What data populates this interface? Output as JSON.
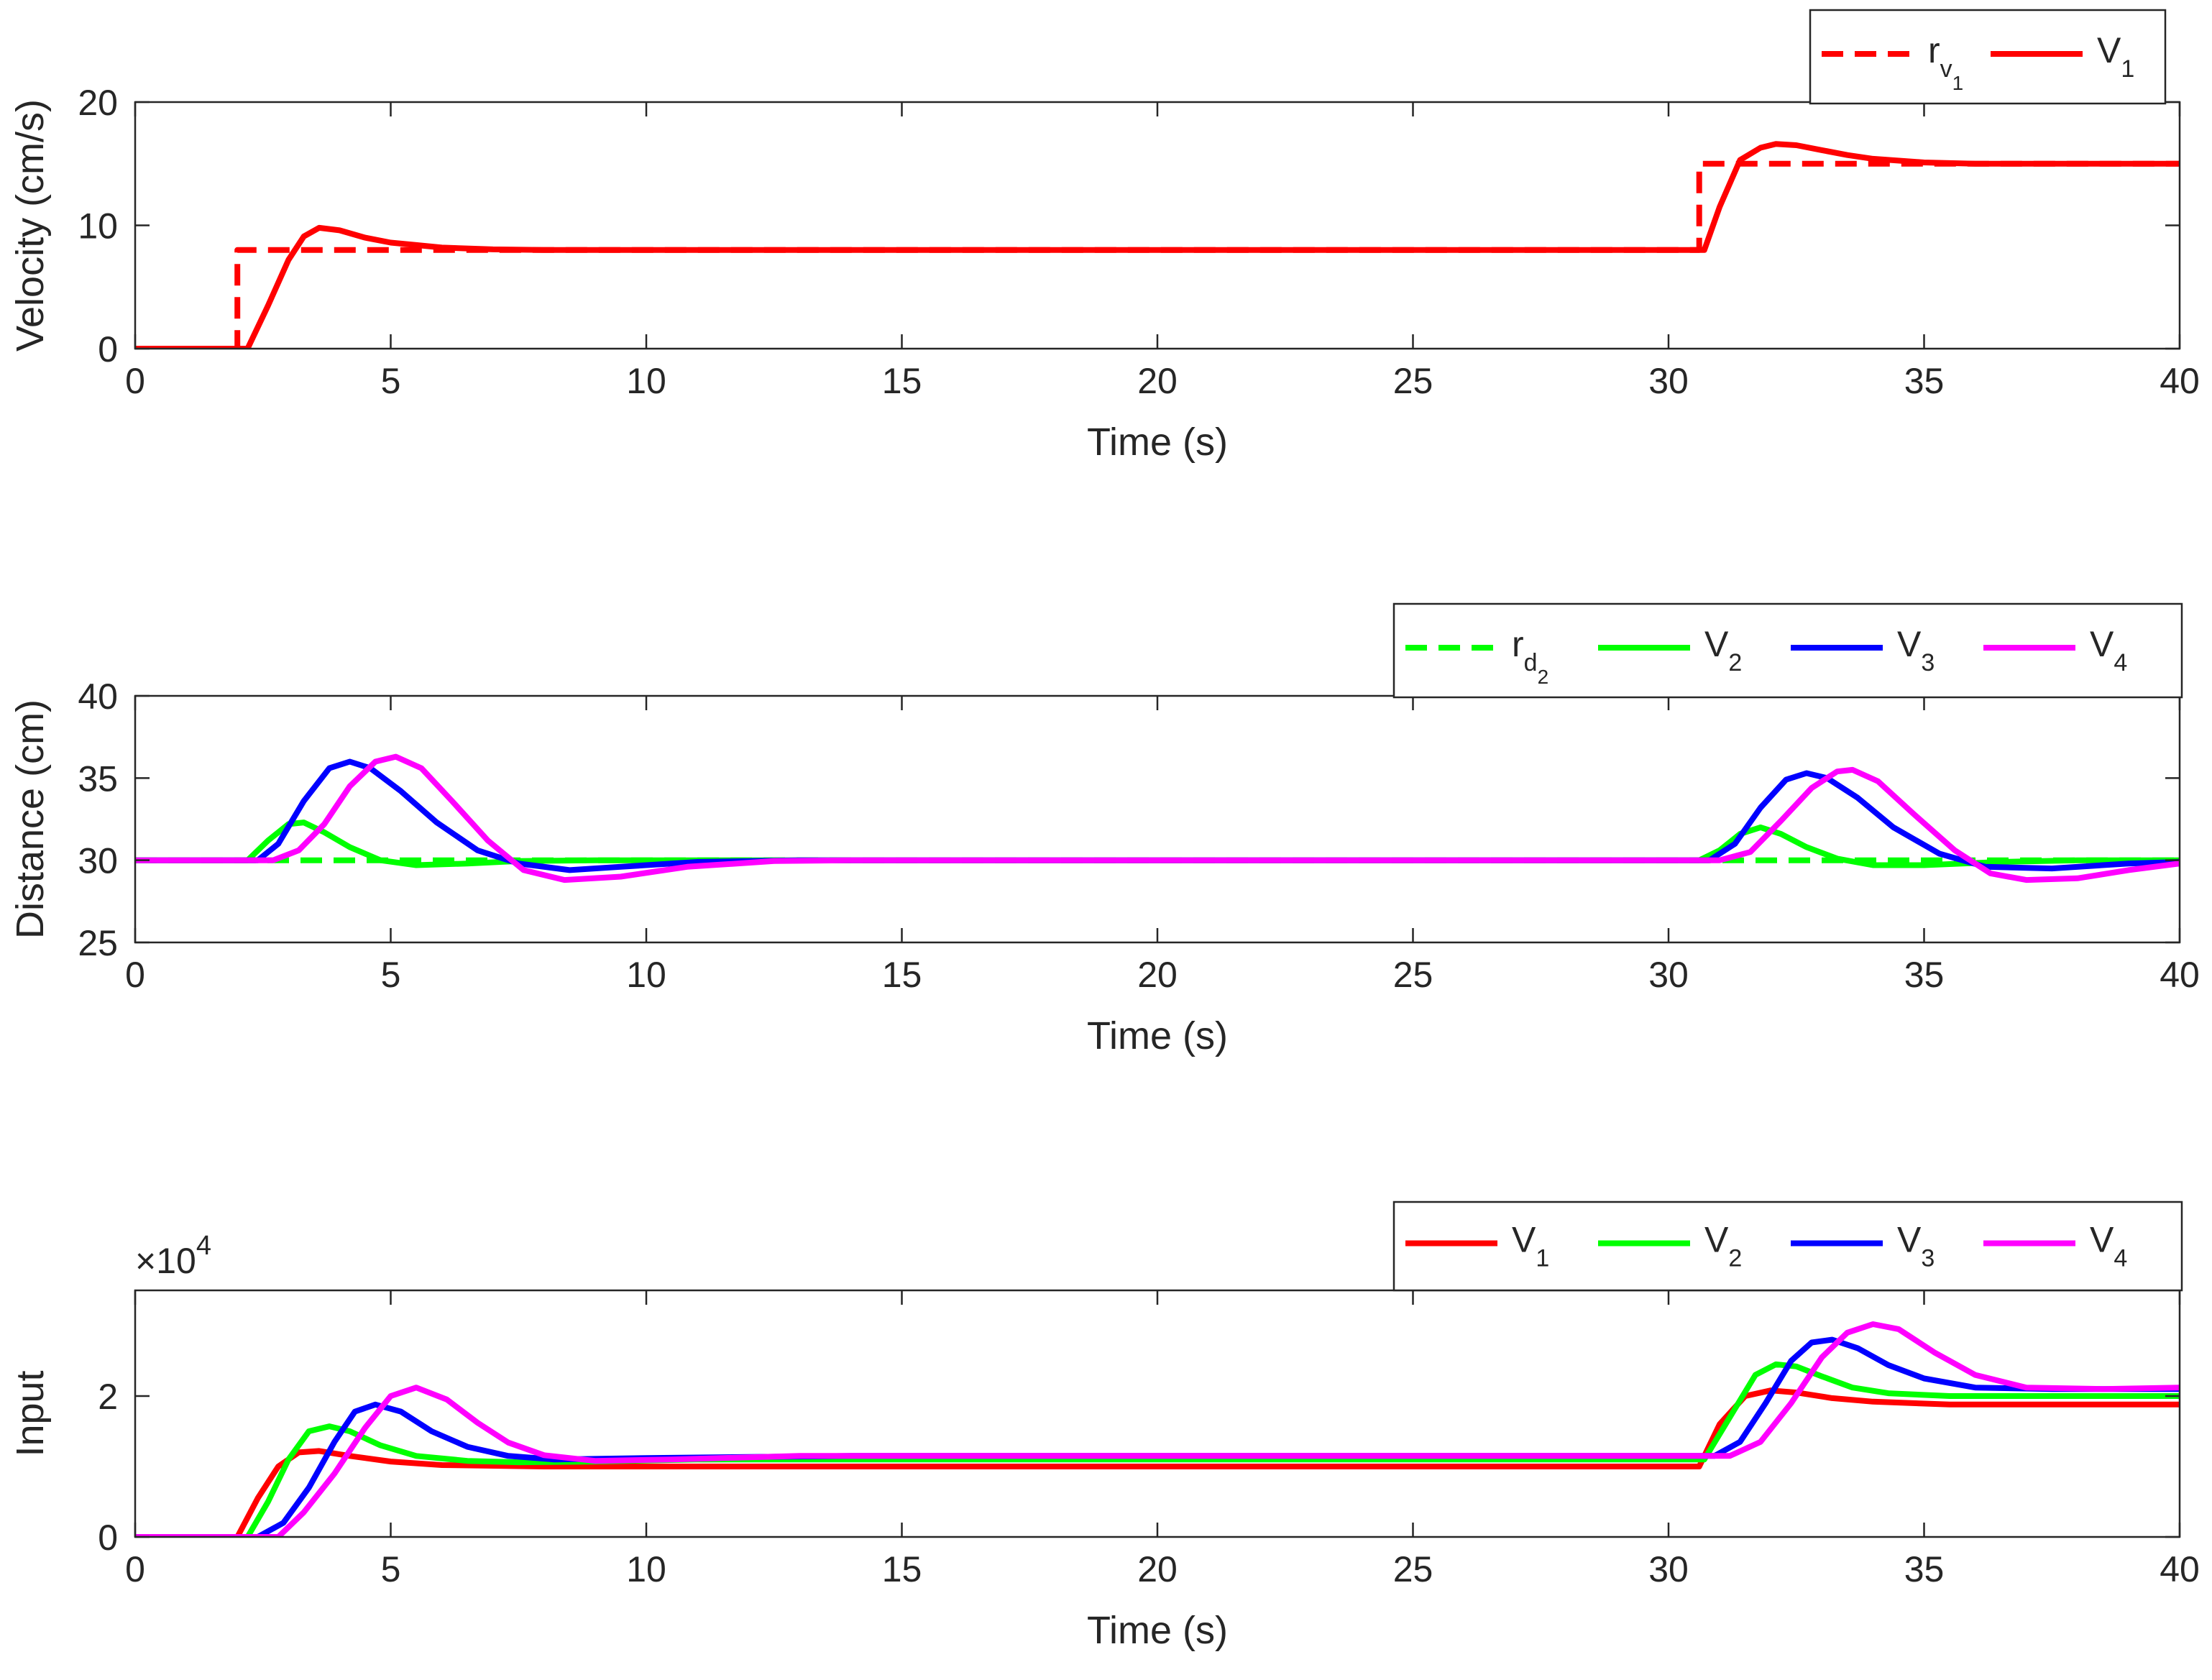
{
  "chart_data": [
    {
      "type": "line",
      "xlabel": "Time (s)",
      "ylabel": "Velocity (cm/s)",
      "xlim": [
        0,
        40
      ],
      "ylim": [
        0,
        20
      ],
      "xticks": [
        0,
        5,
        10,
        15,
        20,
        25,
        30,
        35,
        40
      ],
      "xtick_labels": [
        "0",
        "5",
        "10",
        "15",
        "20",
        "25",
        "30",
        "35",
        "40"
      ],
      "yticks": [
        0,
        10,
        20
      ],
      "ytick_labels": [
        "0",
        "10",
        "20"
      ],
      "legend_position": "top-right, above axes",
      "series": [
        {
          "name": "r",
          "sub": "v",
          "subsub": "1",
          "color": "#ff0000",
          "dash": "dashed",
          "x": [
            0,
            2.0,
            2.0,
            30.6,
            30.6,
            40
          ],
          "y": [
            0,
            0,
            8,
            8,
            15,
            15
          ]
        },
        {
          "name": "V",
          "sub": "1",
          "subsub": "",
          "color": "#ff0000",
          "dash": "solid",
          "x": [
            0,
            2.2,
            2.6,
            3.0,
            3.3,
            3.6,
            4.0,
            4.5,
            5.0,
            5.5,
            6.0,
            7.0,
            8.0,
            10,
            20,
            30.7,
            31.0,
            31.4,
            31.8,
            32.1,
            32.5,
            33.0,
            33.5,
            34.0,
            35.0,
            36.0,
            38.0,
            40
          ],
          "y": [
            0,
            0,
            3.5,
            7.2,
            9.1,
            9.8,
            9.6,
            9.0,
            8.6,
            8.4,
            8.2,
            8.05,
            8.0,
            8.0,
            8.0,
            8.0,
            11.5,
            15.3,
            16.3,
            16.6,
            16.5,
            16.1,
            15.7,
            15.4,
            15.1,
            15.0,
            15.0,
            15.0
          ]
        }
      ]
    },
    {
      "type": "line",
      "xlabel": "Time (s)",
      "ylabel": "Distance (cm)",
      "xlim": [
        0,
        40
      ],
      "ylim": [
        25,
        40
      ],
      "xticks": [
        0,
        5,
        10,
        15,
        20,
        25,
        30,
        35,
        40
      ],
      "xtick_labels": [
        "0",
        "5",
        "10",
        "15",
        "20",
        "25",
        "30",
        "35",
        "40"
      ],
      "yticks": [
        25,
        30,
        35,
        40
      ],
      "ytick_labels": [
        "25",
        "30",
        "35",
        "40"
      ],
      "legend_position": "top-right, above axes",
      "series": [
        {
          "name": "r",
          "sub": "d",
          "subsub": "2",
          "color": "#00ff00",
          "dash": "dashed",
          "x": [
            0,
            40
          ],
          "y": [
            30,
            30
          ]
        },
        {
          "name": "V",
          "sub": "2",
          "subsub": "",
          "color": "#00ff00",
          "dash": "solid",
          "x": [
            0,
            2.2,
            2.6,
            3.0,
            3.3,
            3.7,
            4.2,
            4.8,
            5.5,
            6.5,
            7.5,
            9.0,
            30.6,
            31.0,
            31.4,
            31.8,
            32.2,
            32.7,
            33.3,
            34.0,
            35.0,
            36.5,
            38.0,
            40
          ],
          "y": [
            30,
            30,
            31.2,
            32.2,
            32.3,
            31.7,
            30.8,
            30.0,
            29.7,
            29.8,
            29.95,
            30.0,
            30,
            30.6,
            31.6,
            32.0,
            31.6,
            30.8,
            30.1,
            29.7,
            29.7,
            29.9,
            30.0,
            30.0
          ]
        },
        {
          "name": "V",
          "sub": "3",
          "subsub": "",
          "color": "#0000ff",
          "dash": "solid",
          "x": [
            0,
            2.4,
            2.8,
            3.3,
            3.8,
            4.2,
            4.6,
            5.2,
            5.9,
            6.7,
            7.5,
            8.5,
            9.5,
            11,
            13,
            30.8,
            31.3,
            31.8,
            32.3,
            32.7,
            33.1,
            33.7,
            34.4,
            35.3,
            36.2,
            37.5,
            39,
            40
          ],
          "y": [
            30,
            30,
            31.0,
            33.6,
            35.6,
            36.0,
            35.6,
            34.2,
            32.3,
            30.6,
            29.8,
            29.4,
            29.6,
            29.9,
            30.0,
            30.0,
            31.0,
            33.2,
            34.9,
            35.3,
            35.0,
            33.8,
            32.0,
            30.4,
            29.6,
            29.5,
            29.8,
            29.9
          ]
        },
        {
          "name": "V",
          "sub": "4",
          "subsub": "",
          "color": "#ff00ff",
          "dash": "solid",
          "x": [
            0,
            2.7,
            3.2,
            3.7,
            4.2,
            4.7,
            5.1,
            5.6,
            6.2,
            6.9,
            7.6,
            8.4,
            9.5,
            10.8,
            12.5,
            14,
            31.0,
            31.6,
            32.2,
            32.8,
            33.3,
            33.6,
            34.1,
            34.8,
            35.6,
            36.3,
            37.0,
            38.0,
            39.0,
            40
          ],
          "y": [
            30,
            30,
            30.6,
            32.2,
            34.5,
            36.0,
            36.3,
            35.6,
            33.6,
            31.2,
            29.4,
            28.8,
            29.0,
            29.6,
            29.95,
            30.0,
            30.0,
            30.5,
            32.4,
            34.4,
            35.4,
            35.5,
            34.8,
            32.8,
            30.6,
            29.2,
            28.8,
            28.9,
            29.4,
            29.8
          ]
        }
      ]
    },
    {
      "type": "line",
      "xlabel": "Time (s)",
      "ylabel": "Input",
      "multiplier_base": "×10",
      "multiplier_exp": "4",
      "xlim": [
        0,
        40
      ],
      "ylim": [
        0,
        3.5
      ],
      "xticks": [
        0,
        5,
        10,
        15,
        20,
        25,
        30,
        35,
        40
      ],
      "xtick_labels": [
        "0",
        "5",
        "10",
        "15",
        "20",
        "25",
        "30",
        "35",
        "40"
      ],
      "yticks": [
        0,
        2
      ],
      "ytick_labels": [
        "0",
        "2"
      ],
      "legend_position": "top-right, above axes",
      "series": [
        {
          "name": "V",
          "sub": "1",
          "subsub": "",
          "color": "#ff0000",
          "dash": "solid",
          "x": [
            0,
            2.0,
            2.4,
            2.8,
            3.2,
            3.6,
            4.2,
            5.0,
            6.0,
            8.0,
            10,
            30.6,
            31.0,
            31.5,
            32.0,
            32.5,
            33.2,
            34.0,
            35.5,
            37,
            40
          ],
          "y": [
            0,
            0,
            0.55,
            1.0,
            1.2,
            1.22,
            1.15,
            1.07,
            1.02,
            1.0,
            1.0,
            1.0,
            1.6,
            2.0,
            2.08,
            2.05,
            1.97,
            1.92,
            1.88,
            1.88,
            1.88
          ]
        },
        {
          "name": "V",
          "sub": "2",
          "subsub": "",
          "color": "#00ff00",
          "dash": "solid",
          "x": [
            0,
            2.2,
            2.6,
            3.0,
            3.4,
            3.8,
            4.2,
            4.8,
            5.5,
            6.5,
            7.5,
            9,
            11,
            30.7,
            31.2,
            31.7,
            32.1,
            32.5,
            33.0,
            33.6,
            34.3,
            35.5,
            37,
            40
          ],
          "y": [
            0,
            0,
            0.5,
            1.1,
            1.5,
            1.57,
            1.5,
            1.3,
            1.15,
            1.08,
            1.06,
            1.07,
            1.1,
            1.1,
            1.7,
            2.3,
            2.45,
            2.42,
            2.28,
            2.12,
            2.04,
            2.0,
            2.0,
            2.0
          ]
        },
        {
          "name": "V",
          "sub": "3",
          "subsub": "",
          "color": "#0000ff",
          "dash": "solid",
          "x": [
            0,
            2.4,
            2.9,
            3.4,
            3.9,
            4.3,
            4.7,
            5.2,
            5.8,
            6.5,
            7.3,
            8.2,
            10,
            14,
            30.9,
            31.4,
            31.9,
            32.4,
            32.8,
            33.2,
            33.7,
            34.3,
            35.0,
            36.0,
            37.5,
            40
          ],
          "y": [
            0,
            0,
            0.2,
            0.7,
            1.35,
            1.78,
            1.88,
            1.78,
            1.5,
            1.28,
            1.15,
            1.1,
            1.12,
            1.15,
            1.15,
            1.35,
            1.9,
            2.5,
            2.76,
            2.8,
            2.68,
            2.44,
            2.25,
            2.12,
            2.1,
            2.1
          ]
        },
        {
          "name": "V",
          "sub": "4",
          "subsub": "",
          "color": "#ff00ff",
          "dash": "solid",
          "x": [
            0,
            2.8,
            3.3,
            3.9,
            4.5,
            5.0,
            5.5,
            6.1,
            6.7,
            7.3,
            8.0,
            9.0,
            10.5,
            13,
            31.2,
            31.8,
            32.4,
            33.0,
            33.5,
            34.0,
            34.5,
            35.2,
            36.0,
            37.0,
            38.5,
            40
          ],
          "y": [
            0,
            0,
            0.35,
            0.9,
            1.55,
            2.0,
            2.12,
            1.95,
            1.62,
            1.34,
            1.16,
            1.08,
            1.1,
            1.15,
            1.15,
            1.35,
            1.9,
            2.55,
            2.9,
            3.02,
            2.95,
            2.62,
            2.3,
            2.12,
            2.1,
            2.12
          ]
        }
      ]
    }
  ]
}
